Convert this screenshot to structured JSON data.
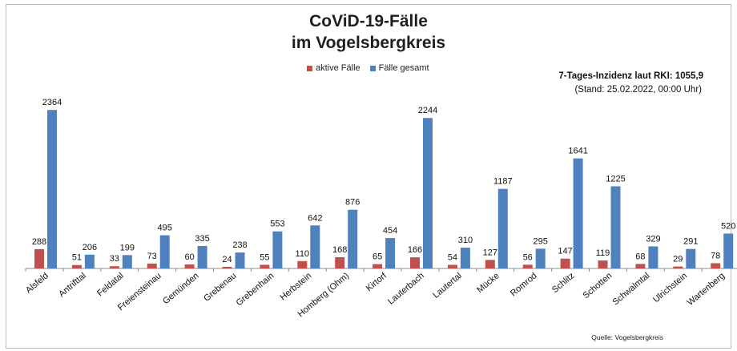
{
  "chart_data": {
    "type": "bar",
    "title": "CoViD-19-Fälle",
    "subtitle": "im Vogelsbergkreis",
    "categories": [
      "Alsfeld",
      "Antrifttal",
      "Feldatal",
      "Freiensteinau",
      "Gemünden",
      "Grebenau",
      "Grebenhain",
      "Herbstein",
      "Homberg (Ohm)",
      "Kirtorf",
      "Lauterbach",
      "Lautertal",
      "Mücke",
      "Romrod",
      "Schlitz",
      "Schotten",
      "Schwalmtal",
      "Ulrichstein",
      "Wartenberg"
    ],
    "series": [
      {
        "name": "aktive Fälle",
        "color": "#c0504d",
        "values": [
          288,
          51,
          33,
          73,
          60,
          24,
          55,
          110,
          168,
          65,
          166,
          54,
          127,
          56,
          147,
          119,
          68,
          29,
          78
        ]
      },
      {
        "name": "Fälle gesamt",
        "color": "#4f81bd",
        "values": [
          2364,
          206,
          199,
          495,
          335,
          238,
          553,
          642,
          876,
          454,
          2244,
          310,
          1187,
          295,
          1641,
          1225,
          329,
          291,
          520
        ]
      }
    ],
    "legend_position": "top-center",
    "grid": false,
    "ylim": [
      0,
      2450
    ]
  },
  "annotation": {
    "incidence": "7-Tages-Inzidenz laut RKI: 1055,9",
    "stand": "(Stand: 25.02.2022, 00:00 Uhr)"
  },
  "source": "Quelle: Vogelsbergkreis"
}
